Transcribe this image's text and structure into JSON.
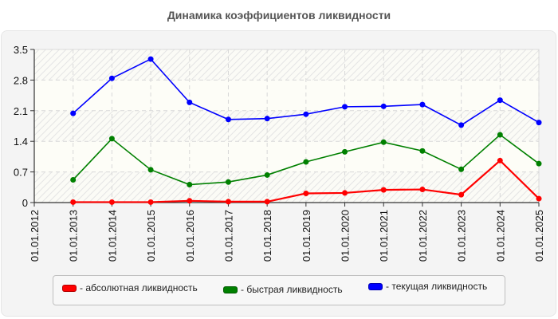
{
  "title": "Динамика коэффициентов ликвидности",
  "chart_data": {
    "type": "line",
    "title": "Динамика коэффициентов ликвидности",
    "xlabel": "",
    "ylabel": "",
    "ylim": [
      0,
      3.5
    ],
    "yticks": [
      "0",
      "0.7",
      "1.4",
      "2.1",
      "2.8",
      "3.5"
    ],
    "grid": true,
    "legend_position": "bottom",
    "categories": [
      "01.01.2012",
      "01.01.2013",
      "01.01.2014",
      "01.01.2015",
      "01.01.2016",
      "01.01.2017",
      "01.01.2018",
      "01.01.2019",
      "01.01.2020",
      "01.01.2021",
      "01.01.2022",
      "01.01.2023",
      "01.01.2024",
      "01.01.2025"
    ],
    "series": [
      {
        "name": "- абсолютная ликвидность",
        "color": "#ff0000",
        "values": [
          null,
          0.01,
          0.01,
          0.01,
          0.04,
          0.02,
          0.02,
          0.21,
          0.22,
          0.29,
          0.3,
          0.18,
          0.96,
          0.09
        ]
      },
      {
        "name": "- быстрая ликвидность",
        "color": "#008000",
        "values": [
          null,
          0.52,
          1.46,
          0.75,
          0.41,
          0.47,
          0.63,
          0.93,
          1.16,
          1.38,
          1.18,
          0.76,
          1.55,
          0.89
        ]
      },
      {
        "name": "- текущая ликвидность",
        "color": "#0000ff",
        "values": [
          null,
          2.04,
          2.84,
          3.28,
          2.29,
          1.9,
          1.92,
          2.02,
          2.19,
          2.2,
          2.24,
          1.77,
          2.34,
          1.83
        ]
      }
    ]
  },
  "legend": {
    "items": [
      {
        "label": "- абсолютная ликвидность",
        "color": "#ff0000"
      },
      {
        "label": "- быстрая ликвидность",
        "color": "#008000"
      },
      {
        "label": "- текущая ликвидность",
        "color": "#0000ff"
      }
    ]
  }
}
